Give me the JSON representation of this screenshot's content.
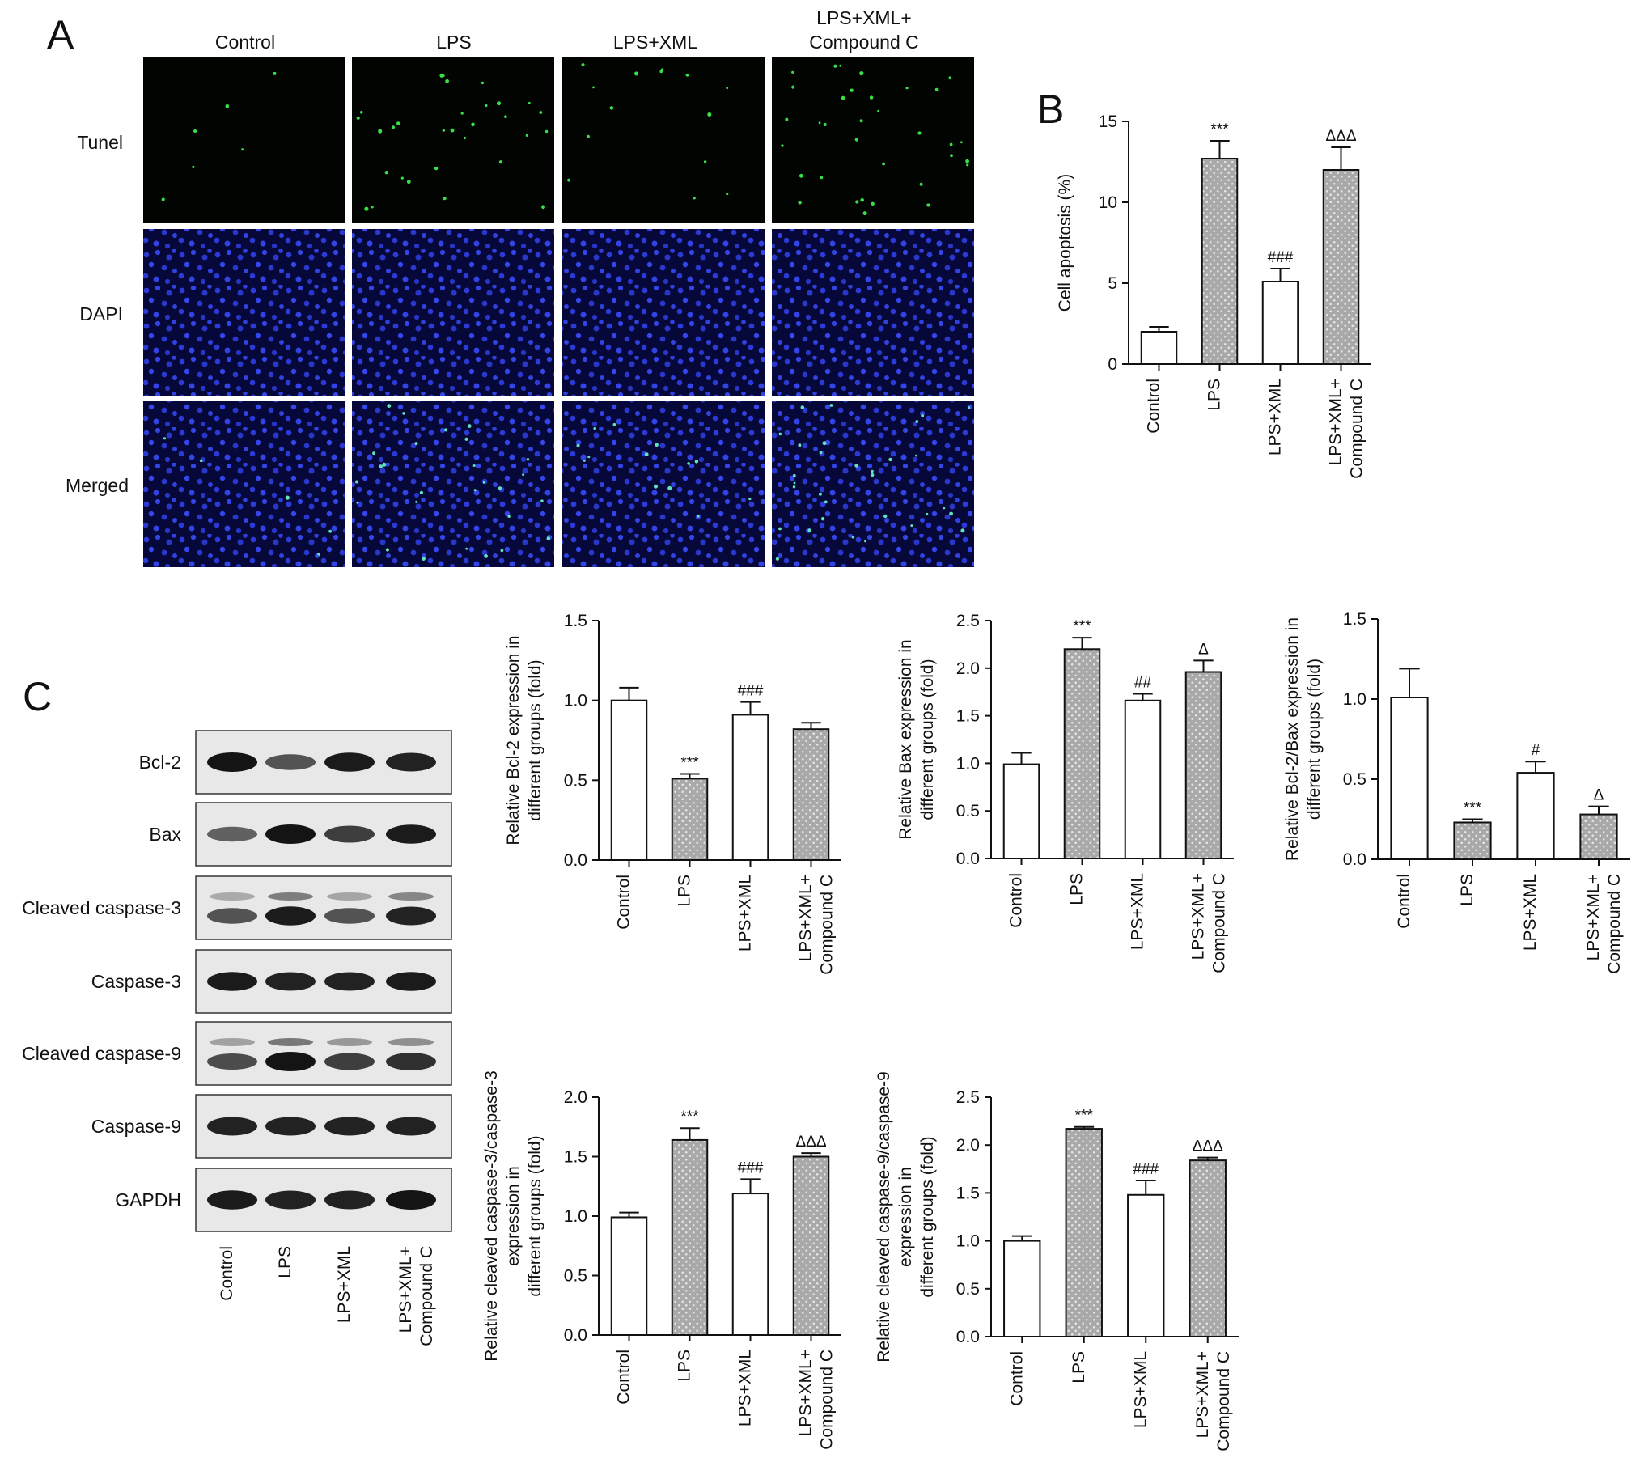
{
  "panel_letters": [
    "A",
    "B",
    "C"
  ],
  "groups": [
    "Control",
    "LPS",
    "LPS+XML",
    "LPS+XML+\nCompound C"
  ],
  "panel_a": {
    "row_labels": [
      "Tunel",
      "DAPI",
      "Merged"
    ],
    "col_labels": [
      "Control",
      "LPS",
      "LPS+XML",
      "LPS+XML+\nCompound C"
    ]
  },
  "panel_c_blot": {
    "row_labels": [
      "Bcl-2",
      "Bax",
      "Cleaved caspase-3",
      "Caspase-3",
      "Cleaved caspase-9",
      "Caspase-9",
      "GAPDH"
    ],
    "lane_labels": [
      "Control",
      "LPS",
      "LPS+XML",
      "LPS+XML+\nCompound C"
    ]
  },
  "colors": {
    "open_bar": "#ffffff",
    "hatched_bar": "#a9a9a9",
    "axis": "#111111"
  },
  "chart_data": [
    {
      "id": "cell_apoptosis",
      "type": "bar",
      "categories": [
        "Control",
        "LPS",
        "LPS+XML",
        "LPS+XML+\nCompound C"
      ],
      "values": [
        2.0,
        12.7,
        5.1,
        12.0
      ],
      "errors": [
        0.3,
        1.1,
        0.8,
        1.4
      ],
      "significance": [
        "",
        "***",
        "###",
        "ΔΔΔ"
      ],
      "ylabel": "Cell apoptosis (%)",
      "ylim": [
        0,
        15
      ],
      "yticks": [
        "0",
        "5",
        "10",
        "15"
      ]
    },
    {
      "id": "bcl2",
      "type": "bar",
      "categories": [
        "Control",
        "LPS",
        "LPS+XML",
        "LPS+XML+\nCompound C"
      ],
      "values": [
        1.0,
        0.51,
        0.91,
        0.82
      ],
      "errors": [
        0.08,
        0.03,
        0.08,
        0.04
      ],
      "significance": [
        "",
        "***",
        "###",
        ""
      ],
      "ylabel": "Relative Bcl-2 expression in\ndifferent groups (fold)",
      "ylim": [
        0,
        1.5
      ],
      "yticks": [
        "0.0",
        "0.5",
        "1.0",
        "1.5"
      ]
    },
    {
      "id": "bax",
      "type": "bar",
      "categories": [
        "Control",
        "LPS",
        "LPS+XML",
        "LPS+XML+\nCompound C"
      ],
      "values": [
        0.99,
        2.2,
        1.66,
        1.96
      ],
      "errors": [
        0.12,
        0.12,
        0.07,
        0.12
      ],
      "significance": [
        "",
        "***",
        "##",
        "Δ"
      ],
      "ylabel": "Relative Bax expression in\ndifferent groups (fold)",
      "ylim": [
        0,
        2.5
      ],
      "yticks": [
        "0.0",
        "0.5",
        "1.0",
        "1.5",
        "2.0",
        "2.5"
      ]
    },
    {
      "id": "bcl2_bax",
      "type": "bar",
      "categories": [
        "Control",
        "LPS",
        "LPS+XML",
        "LPS+XML+\nCompound C"
      ],
      "values": [
        1.01,
        0.23,
        0.54,
        0.28
      ],
      "errors": [
        0.18,
        0.02,
        0.07,
        0.05
      ],
      "significance": [
        "",
        "***",
        "#",
        "Δ"
      ],
      "ylabel": "Relative Bcl-2/Bax expression in\ndifferent groups (fold)",
      "ylim": [
        0,
        1.5
      ],
      "yticks": [
        "0.0",
        "0.5",
        "1.0",
        "1.5"
      ]
    },
    {
      "id": "cleaved_casp3",
      "type": "bar",
      "categories": [
        "Control",
        "LPS",
        "LPS+XML",
        "LPS+XML+\nCompound C"
      ],
      "values": [
        0.99,
        1.64,
        1.19,
        1.5
      ],
      "errors": [
        0.04,
        0.1,
        0.12,
        0.03
      ],
      "significance": [
        "",
        "***",
        "###",
        "ΔΔΔ"
      ],
      "ylabel": "Relative cleaved caspase-3/caspase-3\nexpression in\ndifferent groups (fold)",
      "ylim": [
        0,
        2.0
      ],
      "yticks": [
        "0.0",
        "0.5",
        "1.0",
        "1.5",
        "2.0"
      ]
    },
    {
      "id": "cleaved_casp9",
      "type": "bar",
      "categories": [
        "Control",
        "LPS",
        "LPS+XML",
        "LPS+XML+\nCompound C"
      ],
      "values": [
        1.0,
        2.17,
        1.48,
        1.84
      ],
      "errors": [
        0.05,
        0.02,
        0.15,
        0.03
      ],
      "significance": [
        "",
        "***",
        "###",
        "ΔΔΔ"
      ],
      "ylabel": "Relative cleaved caspase-9/caspase-9\nexpression in\ndifferent groups (fold)",
      "ylim": [
        0,
        2.5
      ],
      "yticks": [
        "0.0",
        "0.5",
        "1.0",
        "1.5",
        "2.0",
        "2.5"
      ]
    }
  ]
}
